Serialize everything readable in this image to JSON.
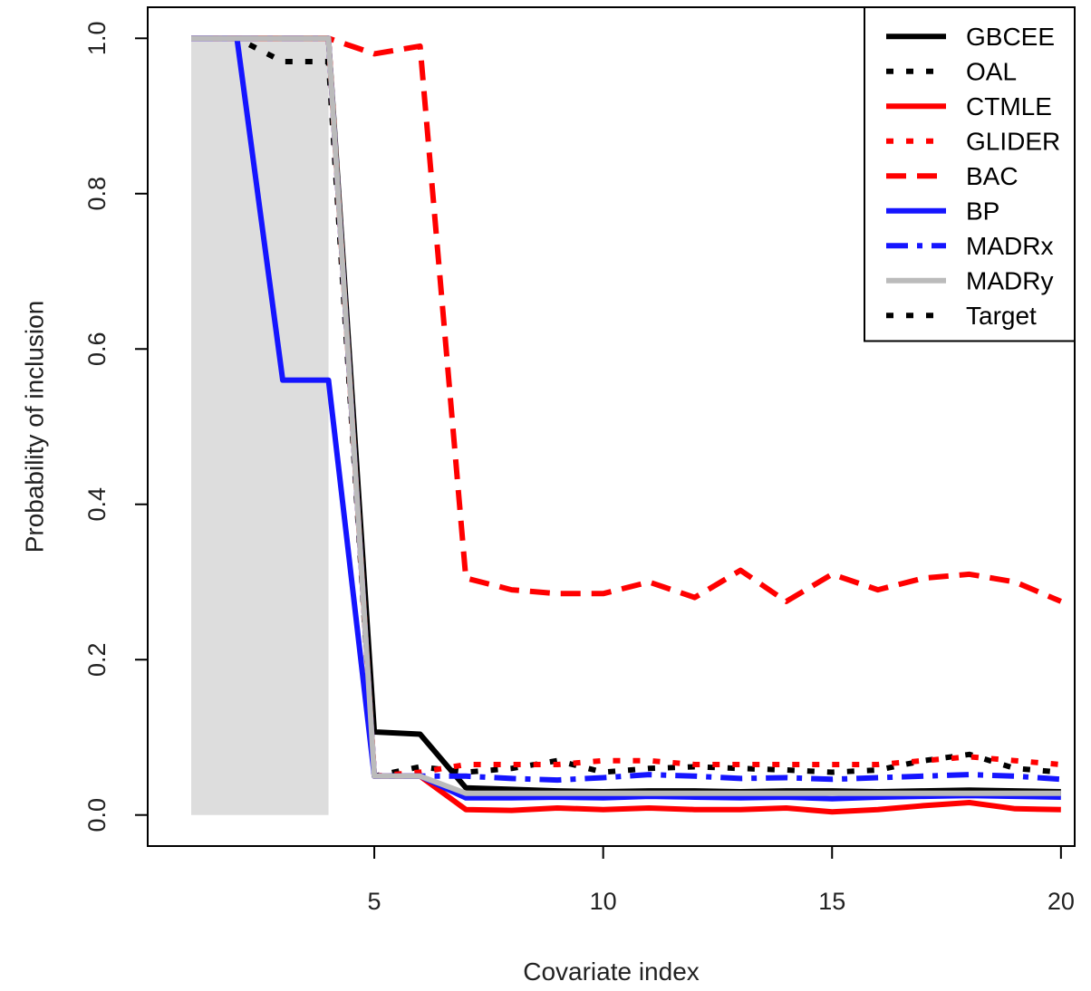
{
  "chart_data": {
    "type": "line",
    "xlabel": "Covariate index",
    "ylabel": "Probability of inclusion",
    "xlim": [
      0.05,
      20.3
    ],
    "ylim": [
      -0.04,
      1.04
    ],
    "xticks": [
      5,
      10,
      15,
      20
    ],
    "yticks": [
      0.0,
      0.2,
      0.4,
      0.6,
      0.8,
      1.0
    ],
    "grid": false,
    "legend_position": "top-right",
    "x": [
      1,
      2,
      3,
      4,
      5,
      6,
      7,
      8,
      9,
      10,
      11,
      12,
      13,
      14,
      15,
      16,
      17,
      18,
      19,
      20
    ],
    "shaded_region": {
      "x": [
        1,
        4
      ],
      "y": [
        0,
        1
      ],
      "color": "#dddddd"
    },
    "series": [
      {
        "name": "GBCEE",
        "color": "#000000",
        "dash": "solid",
        "values": [
          1.0,
          1.0,
          1.0,
          1.0,
          0.107,
          0.104,
          0.035,
          0.033,
          0.031,
          0.03,
          0.031,
          0.031,
          0.03,
          0.031,
          0.031,
          0.03,
          0.031,
          0.032,
          0.031,
          0.03
        ]
      },
      {
        "name": "OAL",
        "color": "#000000",
        "dash": "dot",
        "values": [
          1.0,
          1.0,
          0.97,
          0.97,
          0.05,
          0.062,
          0.055,
          0.06,
          0.07,
          0.055,
          0.06,
          0.062,
          0.06,
          0.058,
          0.055,
          0.058,
          0.07,
          0.078,
          0.06,
          0.055
        ]
      },
      {
        "name": "CTMLE",
        "color": "#ff0000",
        "dash": "solid",
        "values": [
          1.0,
          1.0,
          1.0,
          1.0,
          0.05,
          0.05,
          0.007,
          0.006,
          0.009,
          0.007,
          0.009,
          0.007,
          0.007,
          0.009,
          0.004,
          0.007,
          0.012,
          0.016,
          0.008,
          0.007
        ]
      },
      {
        "name": "GLIDER",
        "color": "#ff0000",
        "dash": "dot",
        "values": [
          1.0,
          1.0,
          1.0,
          1.0,
          0.05,
          0.055,
          0.065,
          0.065,
          0.065,
          0.07,
          0.07,
          0.065,
          0.065,
          0.065,
          0.065,
          0.065,
          0.07,
          0.075,
          0.07,
          0.065
        ]
      },
      {
        "name": "BAC",
        "color": "#ff0000",
        "dash": "dash",
        "values": [
          1.0,
          1.0,
          1.0,
          1.0,
          0.98,
          0.99,
          0.305,
          0.29,
          0.285,
          0.285,
          0.3,
          0.28,
          0.315,
          0.275,
          0.31,
          0.29,
          0.305,
          0.31,
          0.3,
          0.275
        ]
      },
      {
        "name": "BP",
        "color": "#1515ff",
        "dash": "solid",
        "values": [
          1.0,
          1.0,
          0.56,
          0.56,
          0.05,
          0.05,
          0.022,
          0.022,
          0.023,
          0.022,
          0.024,
          0.023,
          0.022,
          0.023,
          0.021,
          0.023,
          0.024,
          0.025,
          0.024,
          0.023
        ]
      },
      {
        "name": "MADRx",
        "color": "#1515ff",
        "dash": "dashdot",
        "values": [
          1.0,
          1.0,
          1.0,
          1.0,
          0.05,
          0.05,
          0.05,
          0.047,
          0.045,
          0.048,
          0.052,
          0.05,
          0.047,
          0.048,
          0.046,
          0.048,
          0.05,
          0.052,
          0.05,
          0.046
        ]
      },
      {
        "name": "MADRy",
        "color": "#bbbbbb",
        "dash": "solid",
        "values": [
          1.0,
          1.0,
          1.0,
          1.0,
          0.05,
          0.05,
          0.028,
          0.028,
          0.028,
          0.028,
          0.028,
          0.028,
          0.028,
          0.028,
          0.028,
          0.028,
          0.028,
          0.028,
          0.028,
          0.028
        ]
      },
      {
        "name": "Target",
        "color": "#000000",
        "dash": "dot",
        "values": [
          1.0,
          1.0,
          1.0,
          1.0,
          0.0,
          0.0,
          0.0,
          0.0,
          0.0,
          0.0,
          0.0,
          0.0,
          0.0,
          0.0,
          0.0,
          0.0,
          0.0,
          0.0,
          0.0,
          0.0
        ],
        "legend_only": true
      }
    ]
  }
}
